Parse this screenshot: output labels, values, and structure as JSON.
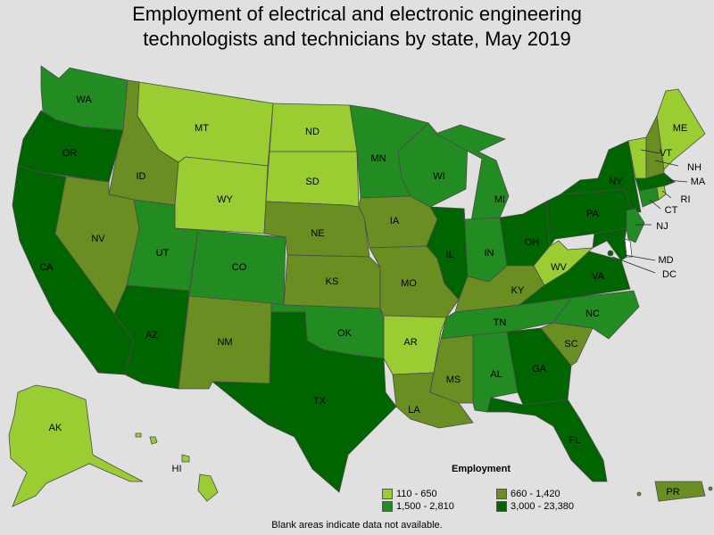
{
  "title_line1": "Employment of electrical and electronic engineering",
  "title_line2": "technologists and technicians by state, May 2019",
  "legend": {
    "title": "Employment",
    "items": [
      {
        "label": "110 - 650",
        "color": "#9acd32"
      },
      {
        "label": "660 - 1,420",
        "color": "#6b8e23"
      },
      {
        "label": "1,500 - 2,810",
        "color": "#228b22"
      },
      {
        "label": "3,000 - 23,380",
        "color": "#006400"
      }
    ]
  },
  "footnote": "Blank areas indicate data not available.",
  "colors": {
    "c1": "#9acd32",
    "c2": "#6b8e23",
    "c3": "#228b22",
    "c4": "#006400",
    "blank": "#ffffff"
  },
  "states": {
    "WA": {
      "abbr": "WA",
      "class": 3
    },
    "OR": {
      "abbr": "OR",
      "class": 4
    },
    "CA": {
      "abbr": "CA",
      "class": 4
    },
    "ID": {
      "abbr": "ID",
      "class": 2
    },
    "NV": {
      "abbr": "NV",
      "class": 2
    },
    "MT": {
      "abbr": "MT",
      "class": 1
    },
    "WY": {
      "abbr": "WY",
      "class": 1
    },
    "UT": {
      "abbr": "UT",
      "class": 3
    },
    "CO": {
      "abbr": "CO",
      "class": 3
    },
    "AZ": {
      "abbr": "AZ",
      "class": 4
    },
    "NM": {
      "abbr": "NM",
      "class": 2
    },
    "ND": {
      "abbr": "ND",
      "class": 1
    },
    "SD": {
      "abbr": "SD",
      "class": 1
    },
    "NE": {
      "abbr": "NE",
      "class": 2
    },
    "KS": {
      "abbr": "KS",
      "class": 2
    },
    "OK": {
      "abbr": "OK",
      "class": 3
    },
    "TX": {
      "abbr": "TX",
      "class": 4
    },
    "MN": {
      "abbr": "MN",
      "class": 3
    },
    "IA": {
      "abbr": "IA",
      "class": 2
    },
    "MO": {
      "abbr": "MO",
      "class": 2
    },
    "AR": {
      "abbr": "AR",
      "class": 1
    },
    "LA": {
      "abbr": "LA",
      "class": 2
    },
    "WI": {
      "abbr": "WI",
      "class": 3
    },
    "IL": {
      "abbr": "IL",
      "class": 4
    },
    "MI": {
      "abbr": "MI",
      "class": 3
    },
    "IN": {
      "abbr": "IN",
      "class": 3
    },
    "OH": {
      "abbr": "OH",
      "class": 4
    },
    "KY": {
      "abbr": "KY",
      "class": 2
    },
    "TN": {
      "abbr": "TN",
      "class": 3
    },
    "MS": {
      "abbr": "MS",
      "class": 2
    },
    "AL": {
      "abbr": "AL",
      "class": 3
    },
    "GA": {
      "abbr": "GA",
      "class": 4
    },
    "FL": {
      "abbr": "FL",
      "class": 4
    },
    "SC": {
      "abbr": "SC",
      "class": 2
    },
    "NC": {
      "abbr": "NC",
      "class": 3
    },
    "VA": {
      "abbr": "VA",
      "class": 4
    },
    "WV": {
      "abbr": "WV",
      "class": 1
    },
    "PA": {
      "abbr": "PA",
      "class": 4
    },
    "NY": {
      "abbr": "NY",
      "class": 4
    },
    "VT": {
      "abbr": "VT",
      "class": 1
    },
    "NH": {
      "abbr": "NH",
      "class": 2
    },
    "ME": {
      "abbr": "ME",
      "class": 1
    },
    "MA": {
      "abbr": "MA",
      "class": 4
    },
    "RI": {
      "abbr": "RI",
      "class": 1
    },
    "CT": {
      "abbr": "CT",
      "class": 3
    },
    "NJ": {
      "abbr": "NJ",
      "class": 3
    },
    "DE": {
      "abbr": "DE",
      "class": 0
    },
    "MD": {
      "abbr": "MD",
      "class": 4
    },
    "DC": {
      "abbr": "DC",
      "class": 4
    },
    "AK": {
      "abbr": "AK",
      "class": 1
    },
    "HI": {
      "abbr": "HI",
      "class": 1
    },
    "PR": {
      "abbr": "PR",
      "class": 2
    }
  }
}
